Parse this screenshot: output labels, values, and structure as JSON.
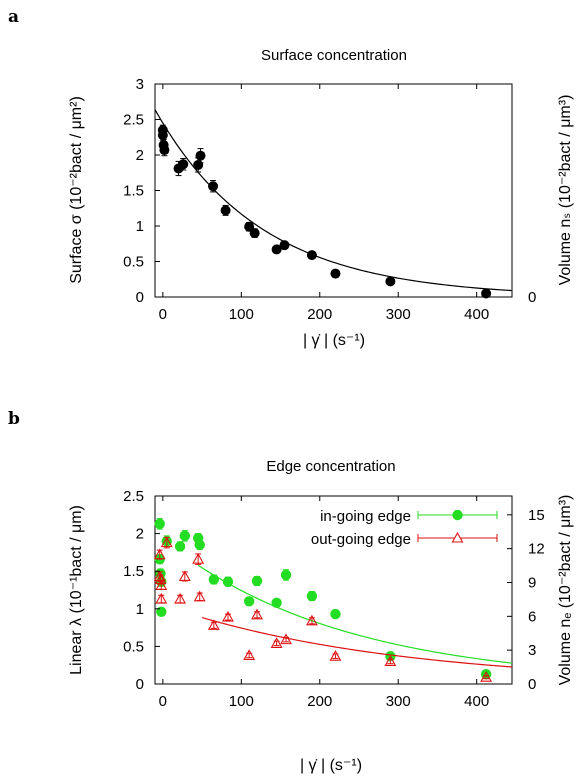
{
  "chart_data": [
    {
      "panel": "a",
      "type": "scatter",
      "title": "Surface concentration",
      "xlabel": "| γ̇ | (s⁻¹)",
      "ylabel": "Surface σ (10⁻²bact / μm²)",
      "y2label": "Volume nₛ (10⁻²bact / μm³)",
      "xlim": [
        -10,
        445
      ],
      "ylim": [
        0,
        3
      ],
      "xticks": [
        "0",
        "100",
        "200",
        "300",
        "400"
      ],
      "yticks": [
        "0",
        "0.5",
        "1",
        "1.5",
        "2",
        "2.5",
        "3"
      ],
      "y2ticks": [
        "0"
      ],
      "grid": false,
      "series": [
        {
          "color": "#000000",
          "marker": "circle",
          "points": [
            {
              "x": 0,
              "y": 2.35,
              "err": 0.07
            },
            {
              "x": 0,
              "y": 2.28,
              "err": 0.07
            },
            {
              "x": 1,
              "y": 2.14,
              "err": 0.08
            },
            {
              "x": 2,
              "y": 2.07,
              "err": 0.08
            },
            {
              "x": 20,
              "y": 1.81,
              "err": 0.1
            },
            {
              "x": 26,
              "y": 1.87,
              "err": 0.08
            },
            {
              "x": 45,
              "y": 1.86,
              "err": 0.1
            },
            {
              "x": 48,
              "y": 1.99,
              "err": 0.1
            },
            {
              "x": 64,
              "y": 1.56,
              "err": 0.08
            },
            {
              "x": 80,
              "y": 1.22,
              "err": 0.07
            },
            {
              "x": 110,
              "y": 0.99,
              "err": 0.06
            },
            {
              "x": 117,
              "y": 0.9,
              "err": 0.06
            },
            {
              "x": 145,
              "y": 0.67,
              "err": 0.04
            },
            {
              "x": 155,
              "y": 0.73,
              "err": 0.04
            },
            {
              "x": 190,
              "y": 0.59,
              "err": 0.03
            },
            {
              "x": 220,
              "y": 0.33,
              "err": 0.02
            },
            {
              "x": 290,
              "y": 0.22,
              "err": 0.02
            },
            {
              "x": 412,
              "y": 0.05,
              "err": 0.02
            }
          ]
        }
      ],
      "fit_curve": {
        "color": "#000000",
        "a": 2.45,
        "tau": 135,
        "x_from": -10,
        "x_to": 445
      }
    },
    {
      "panel": "b",
      "type": "scatter",
      "title": "Edge concentration",
      "xlabel": "| γ̇ | (s⁻¹)",
      "ylabel": "Linear λ  (10⁻¹bact / μm)",
      "y2label": "Volume nₑ (10⁻²bact / μm³)",
      "xlim": [
        -10,
        445
      ],
      "ylim": [
        0,
        2.5
      ],
      "y2lim": [
        0,
        16.67
      ],
      "xticks": [
        "0",
        "100",
        "200",
        "300",
        "400"
      ],
      "yticks": [
        "0",
        "0.5",
        "1",
        "1.5",
        "2",
        "2.5"
      ],
      "y2ticks": [
        "0",
        "3",
        "6",
        "9",
        "12",
        "15"
      ],
      "grid": false,
      "legend_position": "top-right",
      "series": [
        {
          "name": "in-going edge",
          "color": "#22dd22",
          "marker": "filled-circle",
          "points": [
            {
              "x": -4,
              "y": 2.13,
              "err": 0.07
            },
            {
              "x": -4,
              "y": 1.66,
              "err": 0.06
            },
            {
              "x": -3,
              "y": 1.47,
              "err": 0.06
            },
            {
              "x": -2,
              "y": 1.36,
              "err": 0.06
            },
            {
              "x": -2,
              "y": 0.96,
              "err": 0.05
            },
            {
              "x": 5,
              "y": 1.9,
              "err": 0.07
            },
            {
              "x": 22,
              "y": 1.83,
              "err": 0.06
            },
            {
              "x": 28,
              "y": 1.97,
              "err": 0.07
            },
            {
              "x": 45,
              "y": 1.94,
              "err": 0.06
            },
            {
              "x": 47,
              "y": 1.85,
              "err": 0.06
            },
            {
              "x": 65,
              "y": 1.39,
              "err": 0.06
            },
            {
              "x": 83,
              "y": 1.36,
              "err": 0.06
            },
            {
              "x": 110,
              "y": 1.1,
              "err": 0.05
            },
            {
              "x": 120,
              "y": 1.37,
              "err": 0.06
            },
            {
              "x": 145,
              "y": 1.08,
              "err": 0.05
            },
            {
              "x": 157,
              "y": 1.45,
              "err": 0.07
            },
            {
              "x": 190,
              "y": 1.17,
              "err": 0.06
            },
            {
              "x": 220,
              "y": 0.93,
              "err": 0.05
            },
            {
              "x": 290,
              "y": 0.37,
              "err": 0.04
            },
            {
              "x": 412,
              "y": 0.13,
              "err": 0.03
            }
          ],
          "fit_curve": {
            "a": 1.92,
            "tau": 230,
            "x_from": 45,
            "x_to": 445
          }
        },
        {
          "name": "out-going edge",
          "color": "#dd1111",
          "marker": "open-triangle",
          "points": [
            {
              "x": -4,
              "y": 1.72,
              "err": 0.06
            },
            {
              "x": -4,
              "y": 1.43,
              "err": 0.06
            },
            {
              "x": -3,
              "y": 1.39,
              "err": 0.06
            },
            {
              "x": -2,
              "y": 1.31,
              "err": 0.05
            },
            {
              "x": -2,
              "y": 1.13,
              "err": 0.05
            },
            {
              "x": 5,
              "y": 1.88,
              "err": 0.07
            },
            {
              "x": 22,
              "y": 1.13,
              "err": 0.05
            },
            {
              "x": 28,
              "y": 1.43,
              "err": 0.06
            },
            {
              "x": 45,
              "y": 1.66,
              "err": 0.07
            },
            {
              "x": 47,
              "y": 1.16,
              "err": 0.05
            },
            {
              "x": 65,
              "y": 0.78,
              "err": 0.04
            },
            {
              "x": 83,
              "y": 0.89,
              "err": 0.04
            },
            {
              "x": 110,
              "y": 0.38,
              "err": 0.03
            },
            {
              "x": 120,
              "y": 0.92,
              "err": 0.04
            },
            {
              "x": 145,
              "y": 0.54,
              "err": 0.03
            },
            {
              "x": 157,
              "y": 0.59,
              "err": 0.03
            },
            {
              "x": 190,
              "y": 0.84,
              "err": 0.04
            },
            {
              "x": 220,
              "y": 0.37,
              "err": 0.03
            },
            {
              "x": 290,
              "y": 0.3,
              "err": 0.03
            },
            {
              "x": 412,
              "y": 0.09,
              "err": 0.02
            }
          ],
          "fit_curve": {
            "a": 1.05,
            "tau": 290,
            "x_from": 50,
            "x_to": 445
          }
        }
      ]
    }
  ]
}
